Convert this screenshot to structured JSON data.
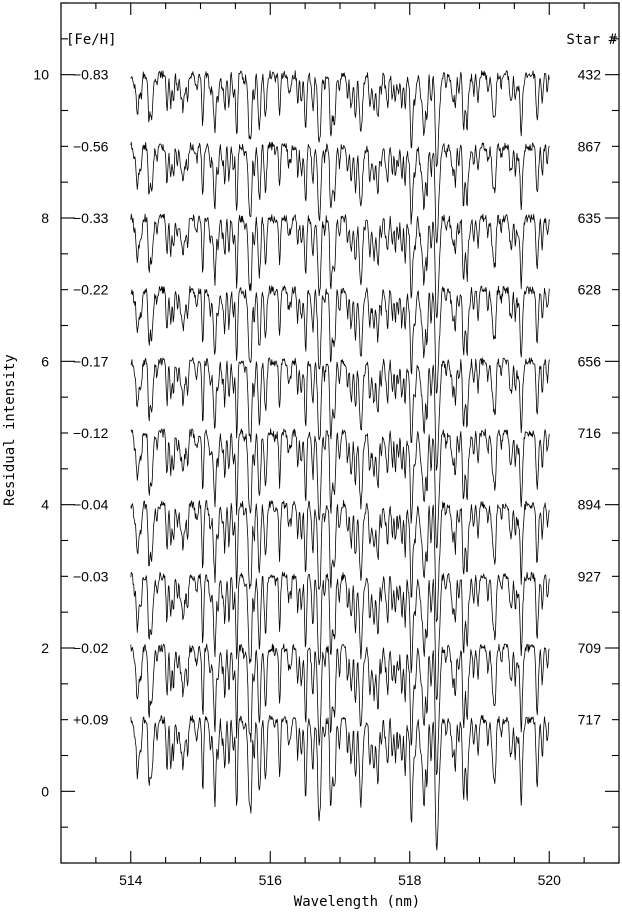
{
  "chart_data": {
    "type": "line",
    "xlabel": "Wavelength (nm)",
    "ylabel": "Residual intensity",
    "xlim": [
      513,
      521
    ],
    "ylim": [
      -1,
      11
    ],
    "xticks": [
      514,
      516,
      518,
      520
    ],
    "yticks": [
      0,
      2,
      4,
      6,
      8,
      10
    ],
    "left_header": "[Fe/H]",
    "right_header": "Star #",
    "x_range": [
      514.0,
      520.0
    ],
    "grid": false,
    "legend": "none",
    "series": [
      {
        "feh": "−0.83",
        "star": "432",
        "offset": 10
      },
      {
        "feh": "−0.56",
        "star": "867",
        "offset": 9
      },
      {
        "feh": "−0.33",
        "star": "635",
        "offset": 8
      },
      {
        "feh": "−0.22",
        "star": "628",
        "offset": 7
      },
      {
        "feh": "−0.17",
        "star": "656",
        "offset": 6
      },
      {
        "feh": "−0.12",
        "star": "716",
        "offset": 5
      },
      {
        "feh": "−0.04",
        "star": "894",
        "offset": 4
      },
      {
        "feh": "−0.03",
        "star": "927",
        "offset": 3
      },
      {
        "feh": "−0.02",
        "star": "709",
        "offset": 2
      },
      {
        "feh": "+0.09",
        "star": "717",
        "offset": 1
      }
    ],
    "strong_lines_nm": [
      514.3,
      514.75,
      515.2,
      516.7,
      516.9,
      517.3,
      518.4,
      519.2,
      519.6
    ]
  }
}
